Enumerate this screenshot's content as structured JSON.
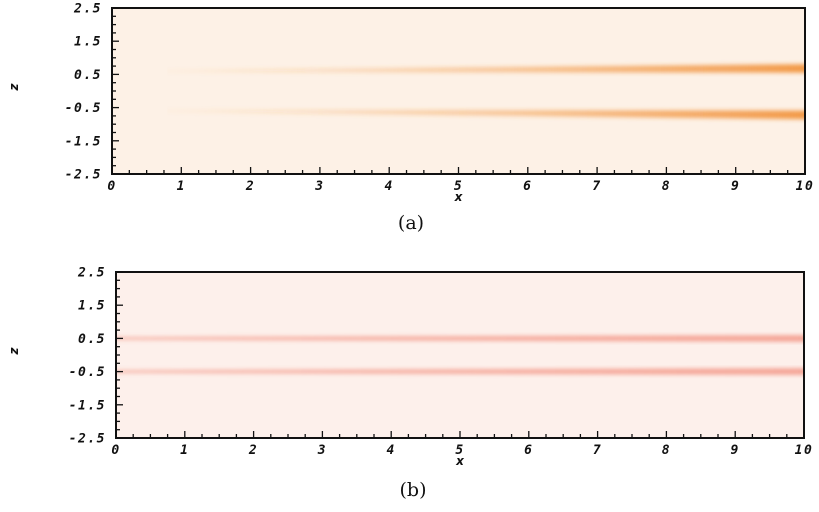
{
  "chart_data": [
    {
      "type": "heatmap",
      "caption": "(a)",
      "xlabel": "x",
      "ylabel": "z",
      "xlim": [
        0,
        10
      ],
      "ylim": [
        -2.5,
        2.5
      ],
      "x_ticks": [
        0,
        1,
        2,
        3,
        4,
        5,
        6,
        7,
        8,
        9,
        10
      ],
      "x_tick_labels": [
        "0",
        "1",
        "2",
        "3",
        "4",
        "5",
        "6",
        "7",
        "8",
        "9",
        "10"
      ],
      "y_ticks": [
        2.5,
        1.5,
        0.5,
        -0.5,
        -1.5,
        -2.5
      ],
      "y_tick_labels": [
        "2.5",
        "1.5",
        "0.5",
        "-0.5",
        "-1.5",
        "-2.5"
      ],
      "grid": false,
      "background_color": "#fdf1e6",
      "plume_color": "#f08a2c",
      "plumes": [
        {
          "x_start": 0.8,
          "z_center_start": 0.6,
          "z_center_end": 0.68,
          "half_width_start": 0.03,
          "half_width_end": 0.13,
          "intensity_start": 0.05,
          "intensity_end": 0.85
        },
        {
          "x_start": 0.8,
          "z_center_start": -0.6,
          "z_center_end": -0.72,
          "half_width_start": 0.03,
          "half_width_end": 0.13,
          "intensity_start": 0.05,
          "intensity_end": 0.85
        }
      ]
    },
    {
      "type": "heatmap",
      "caption": "(b)",
      "xlabel": "x",
      "ylabel": "z",
      "xlim": [
        0,
        10
      ],
      "ylim": [
        -2.5,
        2.5
      ],
      "x_ticks": [
        0,
        1,
        2,
        3,
        4,
        5,
        6,
        7,
        8,
        9,
        10
      ],
      "x_tick_labels": [
        "0",
        "1",
        "2",
        "3",
        "4",
        "5",
        "6",
        "7",
        "8",
        "9",
        "10"
      ],
      "y_ticks": [
        2.5,
        1.5,
        0.5,
        -0.5,
        -1.5,
        -2.5
      ],
      "y_tick_labels": [
        "2.5",
        "1.5",
        "0.5",
        "-0.5",
        "-1.5",
        "-2.5"
      ],
      "grid": false,
      "background_color": "#fdf0eb",
      "plume_color": "#f07a66",
      "plumes": [
        {
          "x_start": 0.0,
          "z_center_start": 0.5,
          "z_center_end": 0.5,
          "half_width_start": 0.04,
          "half_width_end": 0.1,
          "intensity_start": 0.55,
          "intensity_end": 0.65
        },
        {
          "x_start": 0.0,
          "z_center_start": -0.5,
          "z_center_end": -0.5,
          "half_width_start": 0.04,
          "half_width_end": 0.1,
          "intensity_start": 0.55,
          "intensity_end": 0.65
        }
      ]
    }
  ]
}
